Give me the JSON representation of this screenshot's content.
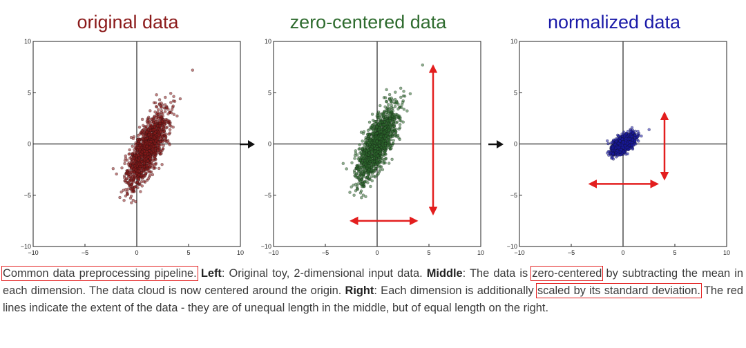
{
  "colors": {
    "original": "#8b1a1a",
    "zero_centered": "#2e6b2e",
    "normalized": "#1a1aa8",
    "extent_arrow": "#e31e1e"
  },
  "transition_icon": "right-arrow-icon",
  "chart_data": [
    {
      "type": "scatter",
      "title": "original data",
      "xlim": [
        -10,
        10
      ],
      "ylim": [
        -10,
        10
      ],
      "xticks": [
        "−10",
        "−5",
        "0",
        "5",
        "10"
      ],
      "yticks": [
        "10",
        "5",
        "0",
        "−5",
        "−10"
      ],
      "center": [
        1.0,
        -0.5
      ],
      "spread_major": 4.2,
      "spread_minor": 0.6,
      "slope": 2.3,
      "count": 1400,
      "seed": 11,
      "extent_arrows": false
    },
    {
      "type": "scatter",
      "title": "zero-centered data",
      "xlim": [
        -10,
        10
      ],
      "ylim": [
        -10,
        10
      ],
      "xticks": [
        "−10",
        "−5",
        "0",
        "5",
        "10"
      ],
      "yticks": [
        "10",
        "5",
        "0",
        "−5",
        "−10"
      ],
      "center": [
        0.0,
        0.0
      ],
      "spread_major": 4.2,
      "spread_minor": 0.6,
      "slope": 2.3,
      "count": 1400,
      "seed": 11,
      "extent_arrows": true,
      "vertical_extent": [
        -6.8,
        7.6
      ],
      "vertical_at_x": 5.4,
      "horizontal_extent": [
        -2.5,
        3.8
      ],
      "horizontal_at_y": -7.5
    },
    {
      "type": "scatter",
      "title": "normalized data",
      "xlim": [
        -10,
        10
      ],
      "ylim": [
        -10,
        10
      ],
      "xticks": [
        "−10",
        "−5",
        "0",
        "5",
        "10"
      ],
      "yticks": [
        "10",
        "5",
        "0",
        "−5",
        "−10"
      ],
      "center": [
        0.0,
        0.0
      ],
      "spread_major": 1.35,
      "spread_minor": 0.32,
      "slope": 0.82,
      "count": 1400,
      "seed": 11,
      "extent_arrows": true,
      "vertical_extent": [
        -3.4,
        3.0
      ],
      "vertical_at_x": 4.0,
      "horizontal_extent": [
        -3.2,
        3.3
      ],
      "horizontal_at_y": -3.9
    }
  ],
  "caption": {
    "t1": "Common data preprocessing pipeline.",
    "t2": "Left",
    "t3": ": Original toy, 2-dimensional input data. ",
    "t4": "Middle",
    "t5": ": The data is ",
    "t6": "zero-centered",
    "t7": " by subtracting the mean in each dimension. The data cloud is now centered around the origin. ",
    "t8": "Right",
    "t9": ": Each dimension is additionally ",
    "t10": "scaled by its standard deviation.",
    "t11": " The red lines indicate the extent of the data - they are of unequal length in the middle, but of equal length on the right."
  }
}
